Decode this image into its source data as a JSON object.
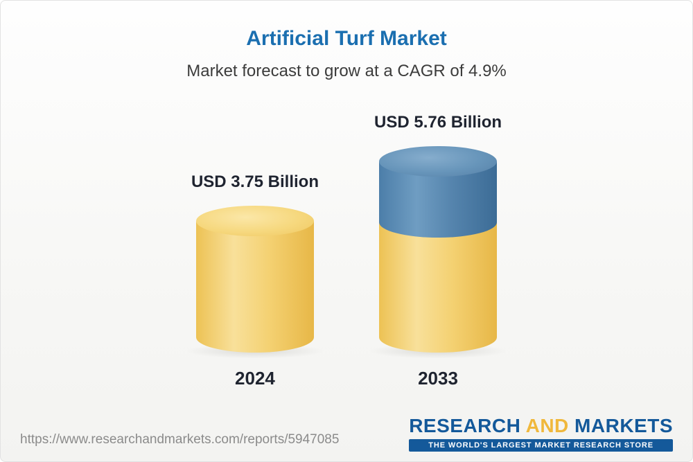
{
  "header": {
    "title": "Artificial Turf Market",
    "subtitle": "Market forecast to grow at a CAGR of 4.9%"
  },
  "footer": {
    "url": "https://www.researchandmarkets.com/reports/5947085",
    "logo": {
      "word1": "RESEARCH",
      "word2": "AND",
      "word3": "MARKETS",
      "tagline": "THE WORLD'S LARGEST MARKET RESEARCH STORE"
    }
  },
  "colors": {
    "title_blue": "#1b6fb0",
    "bar_yellow": "#f2cd6b",
    "bar_blue": "#55809f",
    "logo_blue": "#14599a",
    "logo_yellow": "#f0b83c"
  },
  "chart_data": {
    "type": "bar",
    "title": "Artificial Turf Market",
    "subtitle": "Market forecast to grow at a CAGR of 4.9%",
    "unit": "USD Billion",
    "cagr_percent": 4.9,
    "categories": [
      "2024",
      "2033"
    ],
    "values": [
      3.75,
      5.76
    ],
    "grid": false,
    "legend": "none",
    "axis_labels_shown": false,
    "bars": [
      {
        "year": "2024",
        "value": 3.75,
        "label": "USD 3.75 Billion",
        "segments": [
          "yellow"
        ]
      },
      {
        "year": "2033",
        "value": 5.76,
        "label": "USD 5.76 Billion",
        "segments": [
          "yellow",
          "blue"
        ]
      }
    ]
  }
}
